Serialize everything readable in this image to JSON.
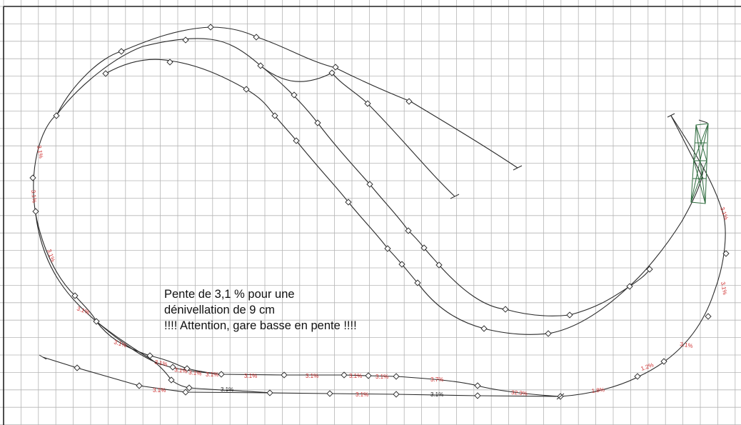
{
  "note": {
    "line1": "Pente de 3,1 % pour une",
    "line2": "dénivellation de 9 cm",
    "line3": "!!!! Attention, gare basse en pente !!!!"
  },
  "grades": [
    {
      "id": "left-1",
      "text": "3.1%"
    },
    {
      "id": "left-2",
      "text": "3.1%"
    },
    {
      "id": "left-3",
      "text": "3.1%"
    },
    {
      "id": "left-4",
      "text": "3.1%"
    },
    {
      "id": "left-5",
      "text": "3.1%"
    },
    {
      "id": "bottom-1",
      "text": "3.1%"
    },
    {
      "id": "bottom-2",
      "text": "3.1%"
    },
    {
      "id": "bottom-3",
      "text": "3.1%"
    },
    {
      "id": "bottom-4",
      "text": "3.1%"
    },
    {
      "id": "bottom-5",
      "text": "3.1%"
    },
    {
      "id": "bottom-6",
      "text": "3.1%"
    },
    {
      "id": "bottom-7",
      "text": "3.1%"
    },
    {
      "id": "bottom-8",
      "text": "3.1%"
    },
    {
      "id": "bottom-9",
      "text": "3.1%"
    },
    {
      "id": "bottom-10",
      "text": "3.1%"
    },
    {
      "id": "bottom-11",
      "text": "3.1%"
    },
    {
      "id": "bottom-12",
      "text": "3.1%"
    },
    {
      "id": "bottom-13",
      "text": "3.7%"
    },
    {
      "id": "bottom-14",
      "text": "32.3%"
    },
    {
      "id": "bottom-15",
      "text": "1.8%"
    },
    {
      "id": "bottom-16",
      "text": "1.2%"
    },
    {
      "id": "right-1",
      "text": "3.1%"
    },
    {
      "id": "right-2",
      "text": "3.1%"
    },
    {
      "id": "right-3",
      "text": "3.1%"
    },
    {
      "id": "right-4",
      "text": "3.1%"
    },
    {
      "id": "right-5",
      "text": "3.1%"
    },
    {
      "id": "right-6",
      "text": "3.1%"
    }
  ],
  "colors": {
    "grid": "#b5b5b5",
    "track": "#2a2a2a",
    "grade_label": "#d03030",
    "bridge": "#2e6b3e"
  }
}
